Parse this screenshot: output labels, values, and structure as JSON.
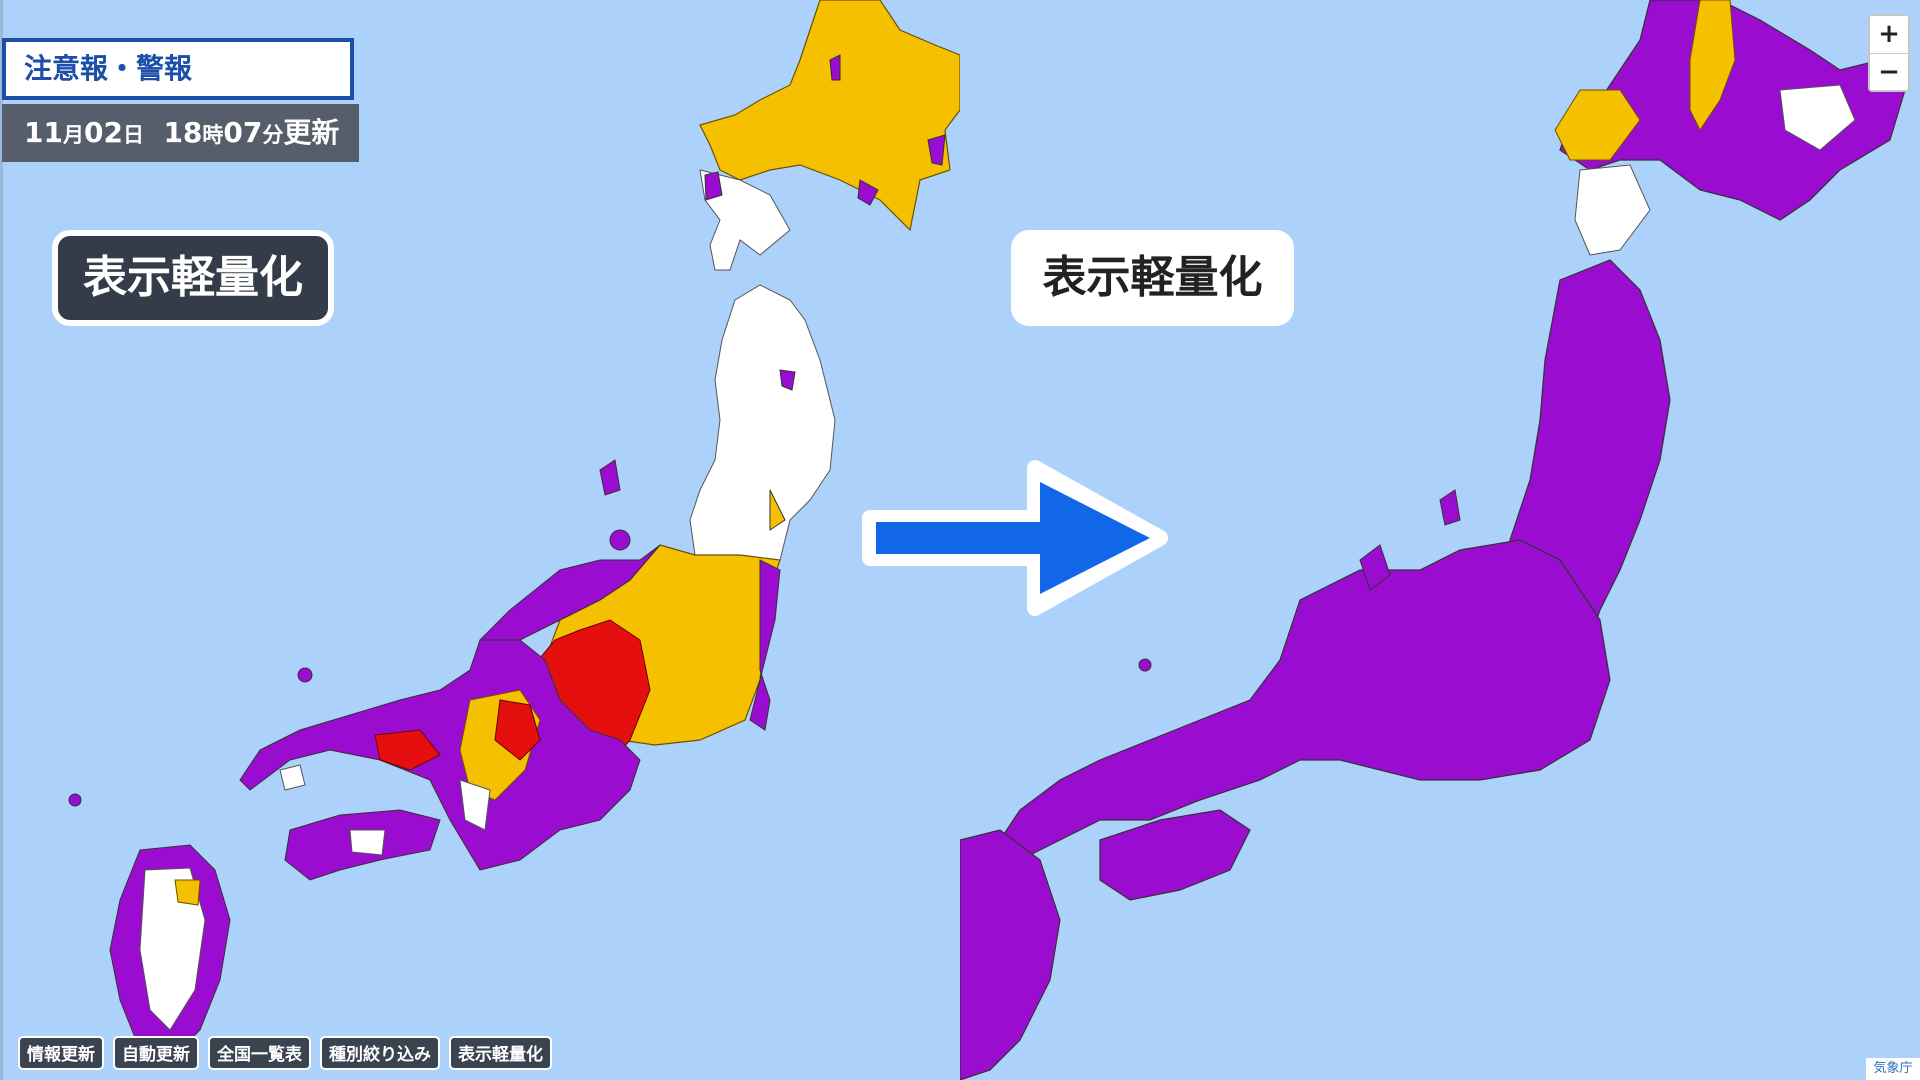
{
  "header": {
    "title": "注意報・警報",
    "update_month": "11",
    "update_month_unit": "月",
    "update_day": "02",
    "update_day_unit": "日",
    "update_hour": "18",
    "update_hour_unit": "時",
    "update_minute": "07",
    "update_minute_unit": "分",
    "update_suffix": "更新"
  },
  "callouts": {
    "before_label": "表示軽量化",
    "after_label": "表示軽量化"
  },
  "arrow": {
    "color": "#1167e8"
  },
  "zoom": {
    "in": "+",
    "out": "−"
  },
  "toolbar": {
    "buttons": [
      "情報更新",
      "自動更新",
      "全国一覧表",
      "種別絞り込み",
      "表示軽量化"
    ]
  },
  "credit": "気象庁",
  "legend_colors": {
    "emergency_warning": "#e50f0f",
    "warning_orange": "#f5c000",
    "advisory_purple": "#9a0ccf",
    "none": "#ffffff",
    "sea": "#acd2fb"
  }
}
